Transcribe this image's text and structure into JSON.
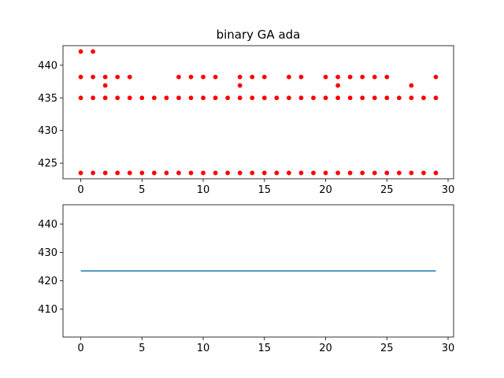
{
  "colors": {
    "scatter": "#ff0000",
    "line": "#1f77b4"
  },
  "chart_data": [
    {
      "type": "scatter",
      "title": "binary GA ada",
      "xlim": [
        -1.45,
        30.45
      ],
      "ylim": [
        422.6,
        443.0
      ],
      "xticks": [
        0,
        5,
        10,
        15,
        20,
        25,
        30
      ],
      "yticks": [
        425,
        430,
        435,
        440
      ],
      "grid": false,
      "series": [
        {
          "points": [
            [
              0,
              423.5
            ],
            [
              0,
              435
            ],
            [
              0,
              438.2
            ],
            [
              0,
              442.1
            ],
            [
              1,
              423.5
            ],
            [
              1,
              435
            ],
            [
              1,
              438.2
            ],
            [
              1,
              442.1
            ],
            [
              2,
              423.5
            ],
            [
              2,
              435
            ],
            [
              2,
              436.9
            ],
            [
              2,
              438.2
            ],
            [
              3,
              423.5
            ],
            [
              3,
              435
            ],
            [
              3,
              438.2
            ],
            [
              4,
              423.5
            ],
            [
              4,
              435
            ],
            [
              4,
              438.2
            ],
            [
              5,
              423.5
            ],
            [
              5,
              435
            ],
            [
              6,
              423.5
            ],
            [
              6,
              435
            ],
            [
              7,
              423.5
            ],
            [
              7,
              435
            ],
            [
              8,
              423.5
            ],
            [
              8,
              435
            ],
            [
              8,
              438.2
            ],
            [
              9,
              423.5
            ],
            [
              9,
              435
            ],
            [
              9,
              438.2
            ],
            [
              10,
              423.5
            ],
            [
              10,
              435
            ],
            [
              10,
              438.2
            ],
            [
              11,
              423.5
            ],
            [
              11,
              435
            ],
            [
              11,
              438.2
            ],
            [
              12,
              423.5
            ],
            [
              12,
              435
            ],
            [
              13,
              423.5
            ],
            [
              13,
              435
            ],
            [
              13,
              436.9
            ],
            [
              13,
              438.2
            ],
            [
              14,
              423.5
            ],
            [
              14,
              435
            ],
            [
              14,
              438.2
            ],
            [
              15,
              423.5
            ],
            [
              15,
              435
            ],
            [
              15,
              438.2
            ],
            [
              16,
              423.5
            ],
            [
              16,
              435
            ],
            [
              17,
              423.5
            ],
            [
              17,
              435
            ],
            [
              17,
              438.2
            ],
            [
              18,
              423.5
            ],
            [
              18,
              435
            ],
            [
              18,
              438.2
            ],
            [
              19,
              423.5
            ],
            [
              19,
              435
            ],
            [
              20,
              423.5
            ],
            [
              20,
              435
            ],
            [
              20,
              438.2
            ],
            [
              21,
              423.5
            ],
            [
              21,
              435
            ],
            [
              21,
              436.9
            ],
            [
              21,
              438.2
            ],
            [
              22,
              423.5
            ],
            [
              22,
              435
            ],
            [
              22,
              438.2
            ],
            [
              23,
              423.5
            ],
            [
              23,
              435
            ],
            [
              23,
              438.2
            ],
            [
              24,
              423.5
            ],
            [
              24,
              435
            ],
            [
              24,
              438.2
            ],
            [
              25,
              423.5
            ],
            [
              25,
              435
            ],
            [
              25,
              438.2
            ],
            [
              26,
              423.5
            ],
            [
              26,
              435
            ],
            [
              27,
              423.5
            ],
            [
              27,
              435
            ],
            [
              27,
              436.9
            ],
            [
              28,
              423.5
            ],
            [
              28,
              435
            ],
            [
              29,
              423.5
            ],
            [
              29,
              435
            ],
            [
              29,
              438.2
            ]
          ]
        }
      ]
    },
    {
      "type": "line",
      "title": "",
      "xlim": [
        -1.45,
        30.45
      ],
      "ylim": [
        400.2,
        446.8
      ],
      "xticks": [
        0,
        5,
        10,
        15,
        20,
        25,
        30
      ],
      "yticks": [
        410,
        420,
        430,
        440
      ],
      "grid": false,
      "series": [
        {
          "x": [
            0,
            1,
            2,
            3,
            4,
            5,
            6,
            7,
            8,
            9,
            10,
            11,
            12,
            13,
            14,
            15,
            16,
            17,
            18,
            19,
            20,
            21,
            22,
            23,
            24,
            25,
            26,
            27,
            28,
            29
          ],
          "y": [
            423.5,
            423.5,
            423.5,
            423.5,
            423.5,
            423.5,
            423.5,
            423.5,
            423.5,
            423.5,
            423.5,
            423.5,
            423.5,
            423.5,
            423.5,
            423.5,
            423.5,
            423.5,
            423.5,
            423.5,
            423.5,
            423.5,
            423.5,
            423.5,
            423.5,
            423.5,
            423.5,
            423.5,
            423.5,
            423.5
          ]
        }
      ]
    }
  ]
}
